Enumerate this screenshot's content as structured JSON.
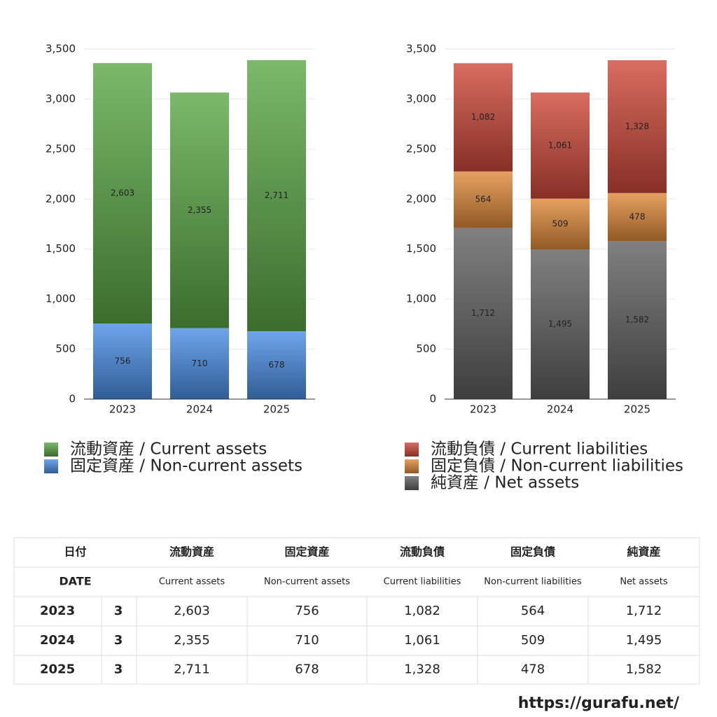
{
  "chart_data": [
    {
      "type": "bar",
      "stacked": true,
      "categories": [
        "2023",
        "2024",
        "2025"
      ],
      "ylim": [
        0,
        3500
      ],
      "yticks": [
        0,
        500,
        {
          "value": 1000,
          "label": "1,000"
        },
        {
          "value": 1500,
          "label": "1,500"
        },
        {
          "value": 2000,
          "label": "2,000"
        },
        {
          "value": 2500,
          "label": "2,500"
        },
        {
          "value": 3000,
          "label": "3,000"
        },
        {
          "value": 3500,
          "label": "3,500"
        }
      ],
      "grid": true,
      "series": [
        {
          "name": "流動資産 / Current assets",
          "color": "#5aa845",
          "values": [
            2603,
            2355,
            2711
          ],
          "value_labels": [
            "2,603",
            "2,355",
            "2,711"
          ]
        },
        {
          "name": "固定資産 / Non-current assets",
          "color": "#4a8fe6",
          "values": [
            756,
            710,
            678
          ]
        }
      ]
    },
    {
      "type": "bar",
      "stacked": true,
      "categories": [
        "2023",
        "2024",
        "2025"
      ],
      "ylim": [
        0,
        3500
      ],
      "yticks": [
        0,
        500,
        {
          "value": 1000,
          "label": "1,000"
        },
        {
          "value": 1500,
          "label": "1,500"
        },
        {
          "value": 2000,
          "label": "2,000"
        },
        {
          "value": 2500,
          "label": "2,500"
        },
        {
          "value": 3000,
          "label": "3,000"
        },
        {
          "value": 3500,
          "label": "3,500"
        }
      ],
      "grid": true,
      "series": [
        {
          "name": "流動負債 / Current liabilities",
          "color": "#d0493a",
          "values": [
            1082,
            1061,
            1328
          ],
          "value_labels": [
            "1,082",
            "1,061",
            "1,328"
          ]
        },
        {
          "name": "固定負債 / Non-current liabilities",
          "color": "#e08a3a",
          "values": [
            564,
            509,
            478
          ]
        },
        {
          "name": "純資産 / Net assets",
          "color": "#606060",
          "values": [
            1712,
            1495,
            1582
          ],
          "value_labels": [
            "1,712",
            "1,495",
            "1,582"
          ]
        }
      ]
    }
  ],
  "table": {
    "header": [
      [
        "日付",
        "流動資産",
        "固定資産",
        "流動負債",
        "固定負債",
        "純資産"
      ],
      [
        "DATE",
        "Current assets",
        "Non-current assets",
        "Current liabilities",
        "Non-current liabilities",
        "Net assets"
      ]
    ],
    "rows": [
      [
        "2023",
        "3",
        "2,603",
        "756",
        "1,082",
        "564",
        "1,712"
      ],
      [
        "2024",
        "3",
        "2,355",
        "710",
        "1,061",
        "509",
        "1,495"
      ],
      [
        "2025",
        "3",
        "2,711",
        "678",
        "1,328",
        "478",
        "1,582"
      ]
    ]
  },
  "footer": "https://gurafu.net/"
}
